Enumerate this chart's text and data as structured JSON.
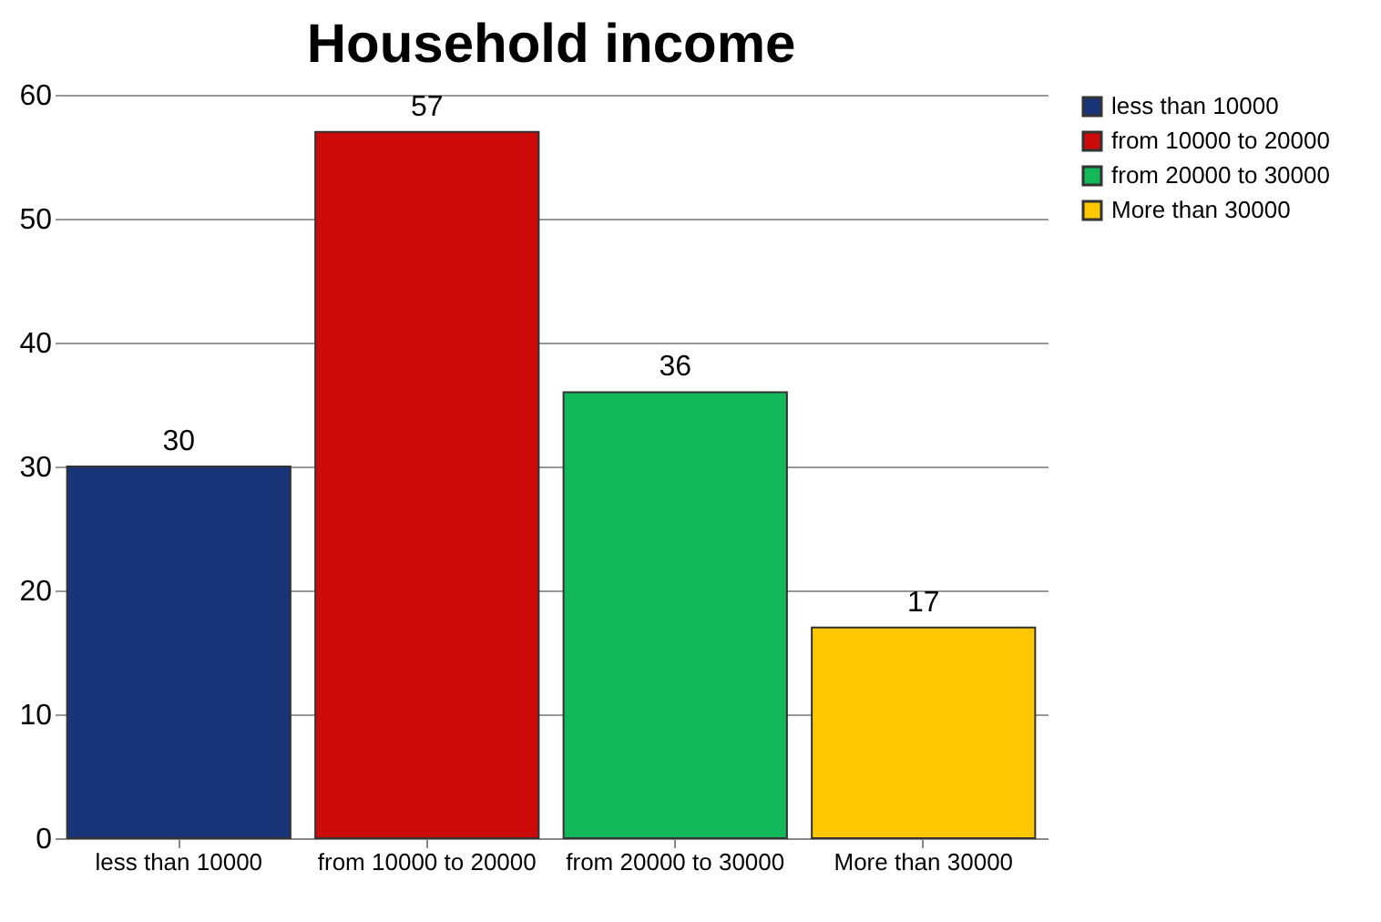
{
  "chart_data": {
    "type": "bar",
    "title": "Household income",
    "categories": [
      "less than 10000",
      "from 10000 to 20000",
      "from 20000 to 30000",
      "More than 30000"
    ],
    "series": [
      {
        "name": "less than 10000",
        "color": "#1a347a",
        "values": [
          30,
          null,
          null,
          null
        ]
      },
      {
        "name": "from 10000 to 20000",
        "color": "#cc0a0a",
        "values": [
          null,
          57,
          null,
          null
        ]
      },
      {
        "name": "from 20000 to 30000",
        "color": "#12b85a",
        "values": [
          null,
          null,
          36,
          null
        ]
      },
      {
        "name": "More than 30000",
        "color": "#ffc800",
        "values": [
          null,
          null,
          null,
          17
        ]
      }
    ],
    "ylim": [
      0,
      60
    ],
    "yticks": [
      0,
      10,
      20,
      30,
      40,
      50,
      60
    ],
    "grid": "y",
    "data_labels": true,
    "legend": "right"
  }
}
